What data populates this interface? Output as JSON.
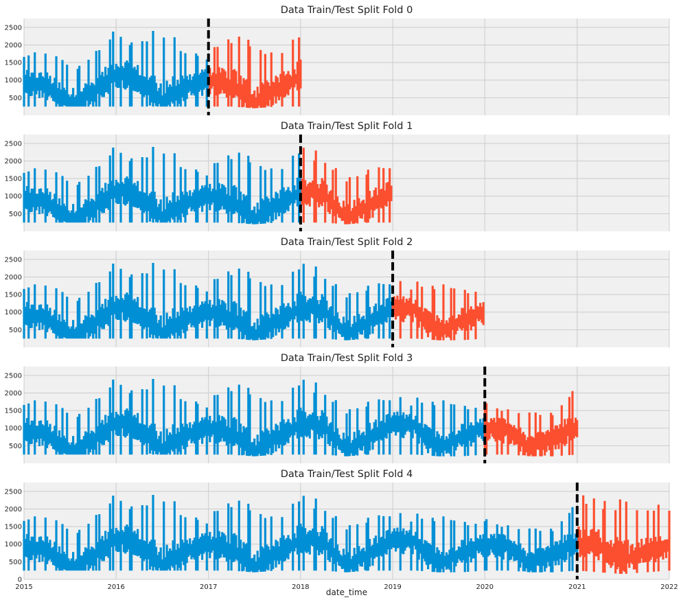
{
  "figure": {
    "xlabel": "date_time"
  },
  "chart_data": {
    "type": "line",
    "xlabel": "date_time",
    "xlim": [
      "2015-01-01",
      "2022-01-01"
    ],
    "x_ticks": [
      "2015",
      "2016",
      "2017",
      "2018",
      "2019",
      "2020",
      "2021",
      "2022"
    ],
    "ylim": [
      0,
      2750
    ],
    "y_ticks": [
      500,
      1000,
      1500,
      2000,
      2500
    ],
    "bottom_y_ticks": [
      0,
      500,
      1000,
      1500,
      2000,
      2500
    ],
    "grid": true,
    "sharex": true,
    "colors": {
      "train": "#008fd5",
      "test": "#fc4f30",
      "split_line": "#000000",
      "axes_background": "#f0f0f0",
      "grid": "#cbcbcb"
    },
    "series_profile_approx": {
      "description_values": "sampled envelope of hourly series (min/max per ~2-week window)",
      "dates": [
        "2015-01",
        "2015-04",
        "2015-07",
        "2015-10",
        "2016-01",
        "2016-04",
        "2016-07",
        "2016-10",
        "2017-01",
        "2017-04",
        "2017-07",
        "2017-10",
        "2018-01",
        "2018-04",
        "2018-07",
        "2018-10",
        "2019-01",
        "2019-04",
        "2019-07",
        "2019-10",
        "2020-01",
        "2020-04",
        "2020-07",
        "2020-10",
        "2021-01",
        "2021-04",
        "2021-07",
        "2021-10",
        "2022-01"
      ],
      "base_level": [
        1100,
        950,
        450,
        750,
        1300,
        1100,
        500,
        900,
        1150,
        1000,
        450,
        850,
        1250,
        1200,
        500,
        850,
        1300,
        1200,
        500,
        900,
        1150,
        1100,
        550,
        900,
        1150,
        1050,
        650,
        900,
        1150
      ],
      "peak_level": [
        1750,
        1950,
        1450,
        1750,
        2500,
        2250,
        2600,
        1900,
        1850,
        2300,
        2200,
        1800,
        2400,
        2250,
        1650,
        1900,
        1950,
        1900,
        1850,
        1650,
        1750,
        1750,
        1450,
        1450,
        2450,
        2300,
        2300,
        2250,
        2050
      ],
      "min_level": [
        250,
        250,
        250,
        250,
        250,
        250,
        250,
        250,
        250,
        250,
        200,
        250,
        250,
        250,
        200,
        250,
        250,
        250,
        200,
        200,
        250,
        250,
        200,
        200,
        250,
        200,
        150,
        200,
        250
      ]
    },
    "folds": [
      {
        "title": "Data Train/Test Split Fold 0",
        "train_end": "2017-01-01",
        "test_end": "2018-01-01",
        "split": "2017-01-01"
      },
      {
        "title": "Data Train/Test Split Fold 1",
        "train_end": "2018-01-01",
        "test_end": "2019-01-01",
        "split": "2018-01-01"
      },
      {
        "title": "Data Train/Test Split Fold 2",
        "train_end": "2019-01-01",
        "test_end": "2020-01-01",
        "split": "2019-01-01"
      },
      {
        "title": "Data Train/Test Split Fold 3",
        "train_end": "2020-01-01",
        "test_end": "2021-01-01",
        "split": "2020-01-01"
      },
      {
        "title": "Data Train/Test Split Fold 4",
        "train_end": "2021-01-01",
        "test_end": "2022-01-01",
        "split": "2021-01-01"
      }
    ]
  }
}
